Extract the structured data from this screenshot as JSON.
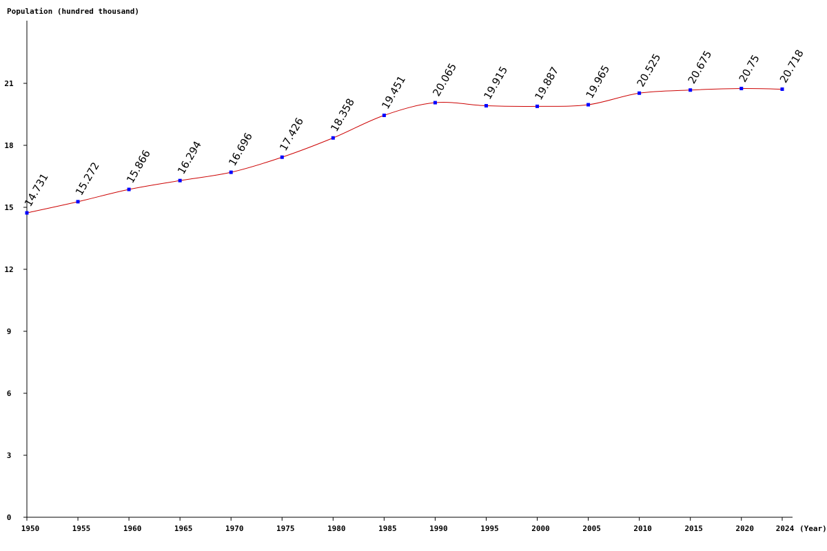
{
  "chart_data": {
    "type": "line",
    "ylabel": "Population (hundred thousand)",
    "xlabel": "(Year)",
    "ylim": [
      0,
      24
    ],
    "yticks": [
      0,
      3,
      6,
      9,
      12,
      15,
      18,
      21
    ],
    "x": [
      1950,
      1955,
      1960,
      1965,
      1970,
      1975,
      1980,
      1985,
      1990,
      1995,
      2000,
      2005,
      2010,
      2015,
      2020,
      2024
    ],
    "x_tick_labels": [
      "1950",
      "1955",
      "1960",
      "1965",
      "1970",
      "1975",
      "1980",
      "1985",
      "1990",
      "1995",
      "2000",
      "2005",
      "2010",
      "2015",
      "2020",
      "2024"
    ],
    "values": [
      14.731,
      15.272,
      15.866,
      16.294,
      16.696,
      17.426,
      18.358,
      19.451,
      20.065,
      19.915,
      19.887,
      19.965,
      20.525,
      20.675,
      20.75,
      20.718
    ],
    "value_labels": [
      "14.731",
      "15.272",
      "15.866",
      "16.294",
      "16.696",
      "17.426",
      "18.358",
      "19.451",
      "20.065",
      "19.915",
      "19.887",
      "19.965",
      "20.525",
      "20.675",
      "20.75",
      "20.718"
    ],
    "line_color": "#cc0000",
    "marker_color": "#0000ff",
    "axis_color": "#000000",
    "grid": false
  }
}
